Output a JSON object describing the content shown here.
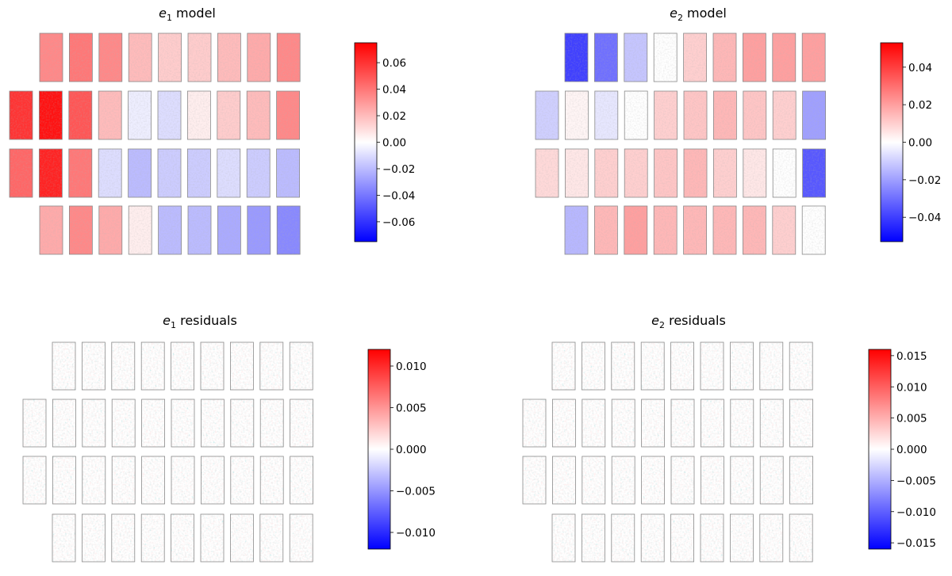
{
  "chart_data": [
    {
      "type": "heatmap",
      "panel": "e1-model",
      "title_symbol": "e",
      "title_sub": "1",
      "title_text": " model",
      "title": "e1 model",
      "colormap": "bwr",
      "colorbar_range": [
        -0.075,
        0.075
      ],
      "colorbar_ticks": [
        0.06,
        0.04,
        0.02,
        0.0,
        -0.02,
        -0.04,
        -0.06
      ],
      "colorbar_tick_labels": [
        "0.06",
        "0.04",
        "0.02",
        "0.00",
        "−0.02",
        "−0.04",
        "−0.06"
      ],
      "rows": [
        [
          0.035,
          0.04,
          0.035,
          0.02,
          0.015,
          0.015,
          0.02,
          0.025,
          0.035
        ],
        [
          0.06,
          0.07,
          0.05,
          0.02,
          -0.005,
          -0.01,
          0.005,
          0.015,
          0.02,
          0.035
        ],
        [
          0.045,
          0.065,
          0.04,
          -0.01,
          -0.02,
          -0.015,
          -0.015,
          -0.01,
          -0.015,
          -0.02
        ],
        [
          0.025,
          0.035,
          0.025,
          0.005,
          -0.02,
          -0.02,
          -0.025,
          -0.03,
          -0.035
        ]
      ]
    },
    {
      "type": "heatmap",
      "panel": "e2-model",
      "title_symbol": "e",
      "title_sub": "2",
      "title_text": " model",
      "title": "e2 model",
      "colormap": "bwr",
      "colorbar_range": [
        -0.053,
        0.053
      ],
      "colorbar_ticks": [
        0.04,
        0.02,
        0.0,
        -0.02,
        -0.04
      ],
      "colorbar_tick_labels": [
        "0.04",
        "0.02",
        "0.00",
        "−0.02",
        "−0.04"
      ],
      "rows": [
        [
          -0.04,
          -0.03,
          -0.012,
          0.0,
          0.01,
          0.015,
          0.02,
          0.02,
          0.02
        ],
        [
          -0.01,
          0.002,
          -0.005,
          0.0,
          0.01,
          0.012,
          0.015,
          0.012,
          0.01,
          -0.02
        ],
        [
          0.008,
          0.005,
          0.01,
          0.01,
          0.012,
          0.015,
          0.01,
          0.005,
          0.0,
          -0.035
        ],
        [
          -0.015,
          0.015,
          0.02,
          0.015,
          0.015,
          0.015,
          0.015,
          0.01,
          0.0
        ]
      ]
    },
    {
      "type": "heatmap",
      "panel": "e1-residuals",
      "title_symbol": "e",
      "title_sub": "1",
      "title_text": " residuals",
      "title": "e1 residuals",
      "colormap": "bwr",
      "colorbar_range": [
        -0.012,
        0.012
      ],
      "colorbar_ticks": [
        0.01,
        0.005,
        0.0,
        -0.005,
        -0.01
      ],
      "colorbar_tick_labels": [
        "0.010",
        "0.005",
        "0.000",
        "−0.005",
        "−0.010"
      ],
      "rows": [
        [
          0,
          0,
          0,
          0,
          0,
          0,
          0,
          0,
          0
        ],
        [
          0,
          0,
          0,
          0,
          0,
          0,
          0,
          0,
          0,
          0
        ],
        [
          0,
          0,
          0,
          0,
          0,
          0,
          0,
          0,
          0,
          0
        ],
        [
          0,
          0,
          0,
          0,
          0,
          0,
          0,
          0,
          0
        ]
      ]
    },
    {
      "type": "heatmap",
      "panel": "e2-residuals",
      "title_symbol": "e",
      "title_sub": "2",
      "title_text": " residuals",
      "title": "e2 residuals",
      "colormap": "bwr",
      "colorbar_range": [
        -0.016,
        0.016
      ],
      "colorbar_ticks": [
        0.015,
        0.01,
        0.005,
        0.0,
        -0.005,
        -0.01,
        -0.015
      ],
      "colorbar_tick_labels": [
        "0.015",
        "0.010",
        "0.005",
        "0.000",
        "−0.005",
        "−0.010",
        "−0.015"
      ],
      "rows": [
        [
          0,
          0,
          0,
          0,
          0,
          0,
          0,
          0,
          0
        ],
        [
          0,
          0,
          0,
          0,
          0,
          0,
          0,
          0,
          0,
          0
        ],
        [
          0,
          0,
          0,
          0,
          0,
          0,
          0,
          0,
          0,
          0
        ],
        [
          0,
          0,
          0,
          0,
          0,
          0,
          0,
          0,
          0
        ]
      ]
    }
  ]
}
